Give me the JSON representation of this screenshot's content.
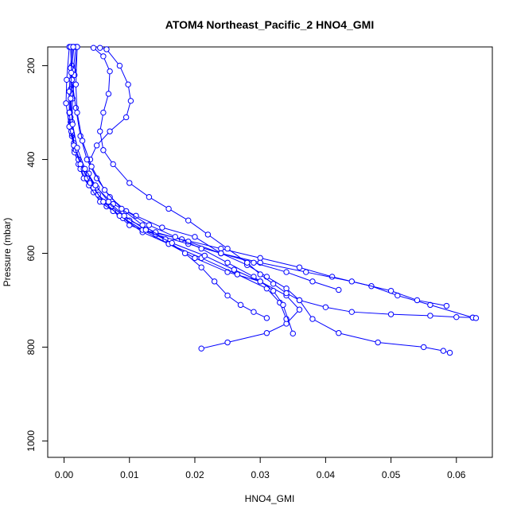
{
  "chart_data": {
    "type": "line",
    "title": "ATOM4 Northeast_Pacific_2 HNO4_GMI",
    "xlabel": "HNO4_GMI",
    "ylabel": "Pressure (mbar)",
    "xlim": [
      -0.0025,
      0.0655
    ],
    "ylim": [
      1035,
      160
    ],
    "y_reversed": true,
    "grid": false,
    "x_ticks": [
      {
        "value": 0.0,
        "label": "0.00"
      },
      {
        "value": 0.01,
        "label": "0.01"
      },
      {
        "value": 0.02,
        "label": "0.02"
      },
      {
        "value": 0.03,
        "label": "0.03"
      },
      {
        "value": 0.04,
        "label": "0.04"
      },
      {
        "value": 0.05,
        "label": "0.05"
      },
      {
        "value": 0.06,
        "label": "0.06"
      }
    ],
    "y_ticks": [
      {
        "value": 200,
        "label": "200"
      },
      {
        "value": 400,
        "label": "400"
      },
      {
        "value": 600,
        "label": "600"
      },
      {
        "value": 800,
        "label": "800"
      },
      {
        "value": 1000,
        "label": "1000"
      }
    ],
    "series_color": "#0000ff",
    "marker": "open-circle",
    "series": [
      {
        "x": [
          0.0015,
          0.0012,
          0.001,
          0.0009,
          0.001,
          0.0012,
          0.0016,
          0.0022,
          0.003,
          0.0045,
          0.0065,
          0.0085,
          0.012,
          0.018,
          0.024,
          0.03,
          0.036,
          0.041,
          0.047,
          0.051,
          0.056,
          0.0625
        ],
        "y": [
          160,
          200,
          250,
          300,
          320,
          350,
          380,
          410,
          440,
          470,
          500,
          520,
          550,
          570,
          590,
          610,
          630,
          650,
          670,
          690,
          710,
          737
        ]
      },
      {
        "x": [
          0.0018,
          0.0014,
          0.0011,
          0.001,
          0.0012,
          0.0016,
          0.0025,
          0.0038,
          0.0055,
          0.0075,
          0.01,
          0.014,
          0.019,
          0.024,
          0.03,
          0.037,
          0.044,
          0.05,
          0.054,
          0.0585
        ],
        "y": [
          160,
          210,
          260,
          310,
          345,
          385,
          420,
          455,
          490,
          510,
          540,
          560,
          580,
          600,
          620,
          640,
          660,
          680,
          700,
          712
        ]
      },
      {
        "x": [
          0.002,
          0.0016,
          0.0013,
          0.0012,
          0.0015,
          0.0022,
          0.0035,
          0.0052,
          0.0072,
          0.01,
          0.014,
          0.019,
          0.024,
          0.029,
          0.034,
          0.038,
          0.042
        ],
        "y": [
          160,
          220,
          270,
          320,
          365,
          400,
          440,
          475,
          500,
          530,
          555,
          575,
          600,
          620,
          640,
          660,
          678
        ]
      },
      {
        "x": [
          0.0012,
          0.001,
          0.0008,
          0.0008,
          0.0011,
          0.0018,
          0.003,
          0.005,
          0.0075,
          0.011,
          0.015,
          0.02,
          0.024,
          0.028,
          0.031,
          0.034,
          0.036,
          0.038,
          0.042,
          0.048,
          0.055,
          0.058,
          0.059
        ],
        "y": [
          160,
          205,
          255,
          300,
          340,
          380,
          420,
          460,
          495,
          520,
          545,
          565,
          600,
          625,
          650,
          675,
          700,
          740,
          770,
          790,
          800,
          808,
          812
        ]
      },
      {
        "x": [
          0.0008,
          0.0004,
          0.0003,
          0.0008,
          0.0015,
          0.0025,
          0.004,
          0.006,
          0.009,
          0.012,
          0.016,
          0.02,
          0.025,
          0.03,
          0.034,
          0.036,
          0.034,
          0.031,
          0.025,
          0.021
        ],
        "y": [
          160,
          230,
          280,
          330,
          370,
          410,
          450,
          490,
          525,
          555,
          580,
          610,
          640,
          660,
          690,
          720,
          750,
          770,
          790,
          803
        ]
      },
      {
        "x": [
          0.0055,
          0.0065,
          0.0085,
          0.0098,
          0.0102,
          0.0095,
          0.007,
          0.005,
          0.004,
          0.0038,
          0.0045,
          0.006,
          0.0085,
          0.012,
          0.016,
          0.021,
          0.0265,
          0.031,
          0.033,
          0.034
        ],
        "y": [
          162,
          165,
          200,
          240,
          275,
          310,
          340,
          370,
          400,
          430,
          460,
          490,
          520,
          550,
          580,
          610,
          645,
          675,
          705,
          740
        ]
      },
      {
        "x": [
          0.001,
          0.0012,
          0.0018,
          0.0025,
          0.0035,
          0.005,
          0.007,
          0.0095,
          0.013,
          0.017,
          0.021,
          0.025,
          0.029,
          0.032,
          0.0335,
          0.035
        ],
        "y": [
          160,
          230,
          290,
          350,
          400,
          440,
          480,
          510,
          540,
          565,
          590,
          620,
          650,
          680,
          710,
          771
        ]
      },
      {
        "x": [
          0.0045,
          0.006,
          0.007,
          0.0068,
          0.006,
          0.0055,
          0.006,
          0.0075,
          0.01,
          0.013,
          0.016,
          0.019,
          0.022,
          0.025,
          0.028,
          0.03,
          0.032,
          0.034,
          0.036,
          0.04,
          0.044,
          0.05,
          0.056,
          0.06,
          0.0625,
          0.063
        ],
        "y": [
          162,
          180,
          212,
          260,
          300,
          340,
          380,
          410,
          450,
          480,
          505,
          530,
          560,
          590,
          620,
          645,
          665,
          685,
          700,
          715,
          725,
          730,
          733,
          736,
          737,
          738
        ]
      },
      {
        "x": [
          0.002,
          0.0018,
          0.002,
          0.0028,
          0.0042,
          0.0062,
          0.0088,
          0.012,
          0.0155,
          0.0185,
          0.021,
          0.023,
          0.025,
          0.027,
          0.029,
          0.031
        ],
        "y": [
          160,
          240,
          300,
          360,
          415,
          465,
          505,
          540,
          570,
          600,
          630,
          660,
          690,
          710,
          725,
          738
        ]
      },
      {
        "x": [
          0.0014,
          0.0011,
          0.001,
          0.0013,
          0.002,
          0.0032,
          0.0048,
          0.0068,
          0.0092,
          0.0125,
          0.0165,
          0.0215,
          0.026,
          0.03
        ],
        "y": [
          160,
          215,
          270,
          325,
          375,
          420,
          455,
          490,
          520,
          550,
          578,
          605,
          635,
          660
        ]
      }
    ]
  }
}
